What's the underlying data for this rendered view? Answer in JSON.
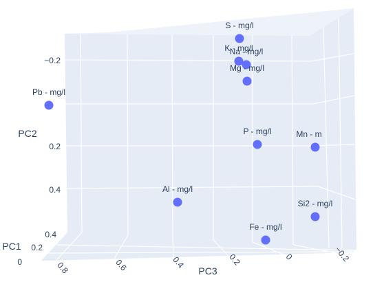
{
  "chart_data": {
    "type": "scatter",
    "subtype": "3d-scatter",
    "title": "",
    "axes": {
      "pc1": {
        "label": "PC1",
        "tick_labels": [
          "0",
          "0.2",
          "0.4"
        ]
      },
      "pc2": {
        "label": "PC2",
        "tick_labels": [
          "−0.2",
          "0.2",
          "0.4"
        ]
      },
      "pc3": {
        "label": "PC3",
        "tick_labels": [
          "0.8",
          "0.6",
          "0.4",
          "0.2",
          "0",
          "−0.2"
        ]
      }
    },
    "grid": true,
    "marker_color": "#636efa",
    "panel_color": "#e5ecf6",
    "points": [
      {
        "label": "S - mg/l"
      },
      {
        "label": "K - mg/l"
      },
      {
        "label": "Na - mg/l"
      },
      {
        "label": "Mg - mg/l"
      },
      {
        "label": "Pb - mg/l"
      },
      {
        "label": "P - mg/l"
      },
      {
        "label": "Mn - m"
      },
      {
        "label": "Al - mg/l"
      },
      {
        "label": "Si2 - mg/l"
      },
      {
        "label": "Fe - mg/l"
      }
    ]
  }
}
